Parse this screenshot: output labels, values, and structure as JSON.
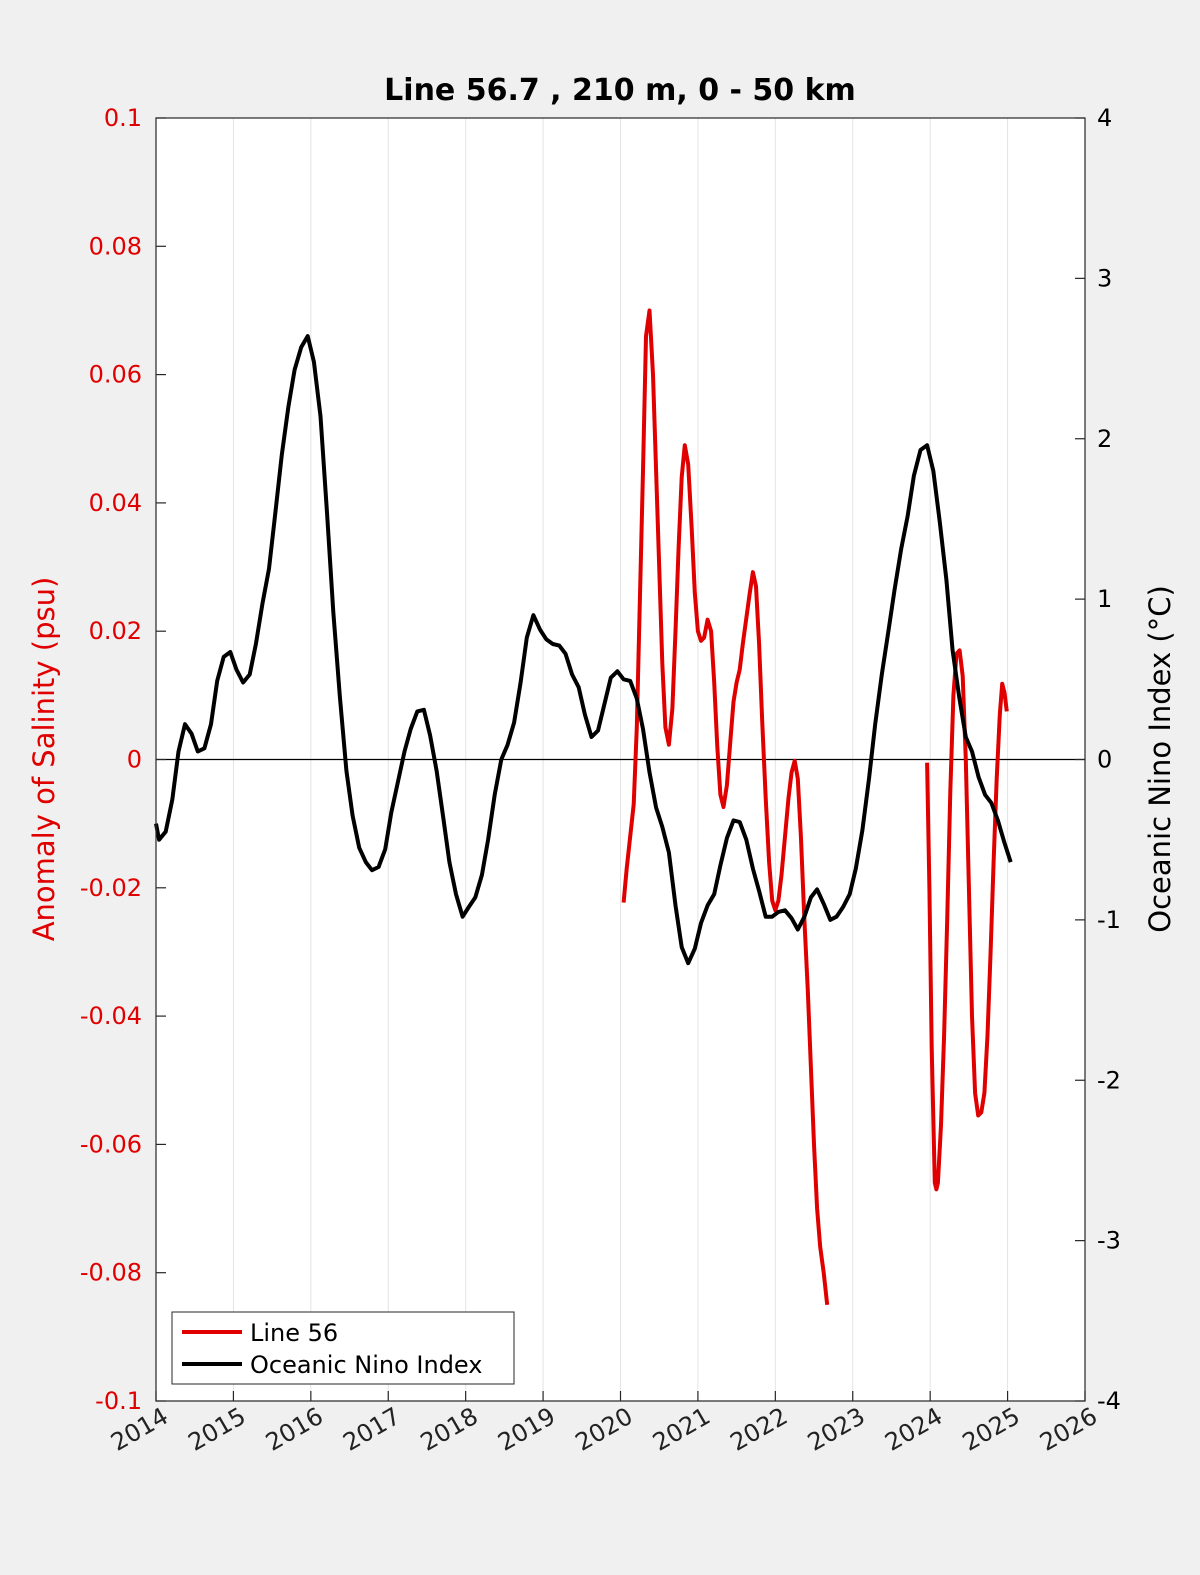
{
  "chart_data": {
    "type": "line",
    "title": "Line 56.7 , 210 m, 0 - 50 km",
    "xlim": [
      2014,
      2026
    ],
    "x_ticks": [
      "2014",
      "2015",
      "2016",
      "2017",
      "2018",
      "2019",
      "2020",
      "2021",
      "2022",
      "2023",
      "2024",
      "2025",
      "2026"
    ],
    "grid": "vertical",
    "legend_position": "bottom-left",
    "y_left": {
      "label": "Anomaly of Salinity (psu)",
      "lim": [
        -0.1,
        0.1
      ],
      "ticks": [
        "0.1",
        "0.08",
        "0.06",
        "0.04",
        "0.02",
        "0",
        "-0.02",
        "-0.04",
        "-0.06",
        "-0.08",
        "-0.1"
      ],
      "color": "#e00000"
    },
    "y_right": {
      "label": "Oceanic Nino Index (°C)",
      "lim": [
        -4,
        4
      ],
      "ticks": [
        "4",
        "3",
        "2",
        "1",
        "0",
        "-1",
        "-2",
        "-3",
        "-4"
      ],
      "color": "#000000"
    },
    "series": [
      {
        "name": "Line 56",
        "axis": "left",
        "color": "#e00000",
        "segments": [
          [
            [
              2020.04,
              -0.0223
            ],
            [
              2020.08,
              -0.017
            ],
            [
              2020.17,
              -0.007
            ],
            [
              2020.21,
              0.005
            ],
            [
              2020.25,
              0.025
            ],
            [
              2020.29,
              0.045
            ],
            [
              2020.33,
              0.066
            ],
            [
              2020.375,
              0.07
            ],
            [
              2020.42,
              0.06
            ],
            [
              2020.46,
              0.045
            ],
            [
              2020.5,
              0.03
            ],
            [
              2020.54,
              0.015
            ],
            [
              2020.58,
              0.005
            ],
            [
              2020.625,
              0.0023
            ],
            [
              2020.67,
              0.008
            ],
            [
              2020.71,
              0.02
            ],
            [
              2020.75,
              0.033
            ],
            [
              2020.79,
              0.044
            ],
            [
              2020.83,
              0.049
            ],
            [
              2020.875,
              0.046
            ],
            [
              2020.92,
              0.036
            ],
            [
              2020.96,
              0.026
            ],
            [
              2021.0,
              0.02
            ],
            [
              2021.04,
              0.0185
            ],
            [
              2021.08,
              0.019
            ],
            [
              2021.125,
              0.0218
            ],
            [
              2021.17,
              0.02
            ],
            [
              2021.21,
              0.012
            ],
            [
              2021.25,
              0.002
            ],
            [
              2021.29,
              -0.0055
            ],
            [
              2021.33,
              -0.0074
            ],
            [
              2021.375,
              -0.004
            ],
            [
              2021.42,
              0.003
            ],
            [
              2021.46,
              0.009
            ],
            [
              2021.5,
              0.012
            ],
            [
              2021.54,
              0.014
            ],
            [
              2021.58,
              0.018
            ],
            [
              2021.625,
              0.022
            ],
            [
              2021.67,
              0.026
            ],
            [
              2021.71,
              0.0292
            ],
            [
              2021.75,
              0.027
            ],
            [
              2021.79,
              0.018
            ],
            [
              2021.83,
              0.006
            ],
            [
              2021.875,
              -0.006
            ],
            [
              2021.92,
              -0.016
            ],
            [
              2021.96,
              -0.022
            ],
            [
              2022.0,
              -0.0235
            ],
            [
              2022.04,
              -0.022
            ],
            [
              2022.08,
              -0.018
            ],
            [
              2022.125,
              -0.012
            ],
            [
              2022.17,
              -0.006
            ],
            [
              2022.21,
              -0.002
            ],
            [
              2022.25,
              -0.0002
            ],
            [
              2022.29,
              -0.003
            ],
            [
              2022.33,
              -0.012
            ],
            [
              2022.375,
              -0.025
            ],
            [
              2022.42,
              -0.036
            ],
            [
              2022.46,
              -0.048
            ],
            [
              2022.5,
              -0.06
            ],
            [
              2022.54,
              -0.07
            ],
            [
              2022.58,
              -0.076
            ],
            [
              2022.625,
              -0.08
            ],
            [
              2022.67,
              -0.085
            ]
          ],
          [
            [
              2023.96,
              -0.0005
            ],
            [
              2023.99,
              -0.02
            ],
            [
              2024.02,
              -0.045
            ],
            [
              2024.06,
              -0.066
            ],
            [
              2024.08,
              -0.067
            ],
            [
              2024.1,
              -0.066
            ],
            [
              2024.14,
              -0.057
            ],
            [
              2024.18,
              -0.043
            ],
            [
              2024.22,
              -0.025
            ],
            [
              2024.26,
              -0.005
            ],
            [
              2024.3,
              0.01
            ],
            [
              2024.34,
              0.0165
            ],
            [
              2024.38,
              0.017
            ],
            [
              2024.42,
              0.013
            ],
            [
              2024.46,
              0.0
            ],
            [
              2024.5,
              -0.02
            ],
            [
              2024.54,
              -0.04
            ],
            [
              2024.58,
              -0.052
            ],
            [
              2024.62,
              -0.0555
            ],
            [
              2024.66,
              -0.055
            ],
            [
              2024.7,
              -0.052
            ],
            [
              2024.74,
              -0.043
            ],
            [
              2024.78,
              -0.03
            ],
            [
              2024.82,
              -0.016
            ],
            [
              2024.86,
              -0.003
            ],
            [
              2024.9,
              0.007
            ],
            [
              2024.93,
              0.0118
            ],
            [
              2024.96,
              0.0104
            ],
            [
              2024.99,
              0.0075
            ]
          ]
        ]
      },
      {
        "name": "Oceanic Nino Index",
        "axis": "right",
        "color": "#000000",
        "segments": [
          [
            [
              2014.0,
              -0.4
            ],
            [
              2014.04,
              -0.5
            ],
            [
              2014.125,
              -0.45
            ],
            [
              2014.21,
              -0.25
            ],
            [
              2014.29,
              0.05
            ],
            [
              2014.375,
              0.22
            ],
            [
              2014.46,
              0.16
            ],
            [
              2014.54,
              0.05
            ],
            [
              2014.625,
              0.07
            ],
            [
              2014.71,
              0.22
            ],
            [
              2014.79,
              0.49
            ],
            [
              2014.875,
              0.64
            ],
            [
              2014.96,
              0.67
            ],
            [
              2015.04,
              0.56
            ],
            [
              2015.125,
              0.48
            ],
            [
              2015.21,
              0.53
            ],
            [
              2015.29,
              0.72
            ],
            [
              2015.375,
              0.97
            ],
            [
              2015.46,
              1.19
            ],
            [
              2015.54,
              1.53
            ],
            [
              2015.625,
              1.9
            ],
            [
              2015.71,
              2.2
            ],
            [
              2015.79,
              2.43
            ],
            [
              2015.875,
              2.57
            ],
            [
              2015.96,
              2.64
            ],
            [
              2016.04,
              2.48
            ],
            [
              2016.125,
              2.14
            ],
            [
              2016.21,
              1.53
            ],
            [
              2016.29,
              0.92
            ],
            [
              2016.375,
              0.39
            ],
            [
              2016.46,
              -0.07
            ],
            [
              2016.54,
              -0.35
            ],
            [
              2016.625,
              -0.55
            ],
            [
              2016.71,
              -0.64
            ],
            [
              2016.79,
              -0.69
            ],
            [
              2016.875,
              -0.67
            ],
            [
              2016.96,
              -0.56
            ],
            [
              2017.04,
              -0.33
            ],
            [
              2017.125,
              -0.14
            ],
            [
              2017.21,
              0.05
            ],
            [
              2017.29,
              0.19
            ],
            [
              2017.375,
              0.3
            ],
            [
              2017.46,
              0.31
            ],
            [
              2017.54,
              0.15
            ],
            [
              2017.625,
              -0.07
            ],
            [
              2017.71,
              -0.36
            ],
            [
              2017.79,
              -0.64
            ],
            [
              2017.875,
              -0.84
            ],
            [
              2017.96,
              -0.98
            ],
            [
              2018.04,
              -0.92
            ],
            [
              2018.125,
              -0.86
            ],
            [
              2018.21,
              -0.72
            ],
            [
              2018.29,
              -0.5
            ],
            [
              2018.375,
              -0.22
            ],
            [
              2018.46,
              0.0
            ],
            [
              2018.54,
              0.09
            ],
            [
              2018.625,
              0.23
            ],
            [
              2018.71,
              0.48
            ],
            [
              2018.79,
              0.76
            ],
            [
              2018.875,
              0.9
            ],
            [
              2018.96,
              0.81
            ],
            [
              2019.04,
              0.75
            ],
            [
              2019.125,
              0.72
            ],
            [
              2019.21,
              0.71
            ],
            [
              2019.29,
              0.66
            ],
            [
              2019.375,
              0.53
            ],
            [
              2019.46,
              0.45
            ],
            [
              2019.54,
              0.28
            ],
            [
              2019.625,
              0.14
            ],
            [
              2019.71,
              0.18
            ],
            [
              2019.79,
              0.34
            ],
            [
              2019.875,
              0.51
            ],
            [
              2019.96,
              0.55
            ],
            [
              2020.04,
              0.5
            ],
            [
              2020.125,
              0.49
            ],
            [
              2020.21,
              0.38
            ],
            [
              2020.29,
              0.19
            ],
            [
              2020.375,
              -0.08
            ],
            [
              2020.46,
              -0.3
            ],
            [
              2020.54,
              -0.42
            ],
            [
              2020.625,
              -0.58
            ],
            [
              2020.71,
              -0.91
            ],
            [
              2020.79,
              -1.17
            ],
            [
              2020.875,
              -1.27
            ],
            [
              2020.96,
              -1.18
            ],
            [
              2021.04,
              -1.02
            ],
            [
              2021.125,
              -0.91
            ],
            [
              2021.21,
              -0.84
            ],
            [
              2021.29,
              -0.66
            ],
            [
              2021.375,
              -0.49
            ],
            [
              2021.46,
              -0.38
            ],
            [
              2021.54,
              -0.39
            ],
            [
              2021.625,
              -0.5
            ],
            [
              2021.71,
              -0.68
            ],
            [
              2021.79,
              -0.82
            ],
            [
              2021.875,
              -0.98
            ],
            [
              2021.96,
              -0.98
            ],
            [
              2022.04,
              -0.95
            ],
            [
              2022.125,
              -0.94
            ],
            [
              2022.21,
              -0.99
            ],
            [
              2022.29,
              -1.06
            ],
            [
              2022.375,
              -0.98
            ],
            [
              2022.46,
              -0.86
            ],
            [
              2022.54,
              -0.81
            ],
            [
              2022.625,
              -0.9
            ],
            [
              2022.71,
              -1.0
            ],
            [
              2022.79,
              -0.98
            ],
            [
              2022.875,
              -0.92
            ],
            [
              2022.96,
              -0.84
            ],
            [
              2023.04,
              -0.68
            ],
            [
              2023.125,
              -0.44
            ],
            [
              2023.21,
              -0.12
            ],
            [
              2023.29,
              0.22
            ],
            [
              2023.375,
              0.53
            ],
            [
              2023.46,
              0.8
            ],
            [
              2023.54,
              1.06
            ],
            [
              2023.625,
              1.31
            ],
            [
              2023.71,
              1.52
            ],
            [
              2023.79,
              1.77
            ],
            [
              2023.875,
              1.93
            ],
            [
              2023.96,
              1.96
            ],
            [
              2024.04,
              1.8
            ],
            [
              2024.125,
              1.48
            ],
            [
              2024.21,
              1.12
            ],
            [
              2024.29,
              0.68
            ],
            [
              2024.375,
              0.39
            ],
            [
              2024.46,
              0.14
            ],
            [
              2024.54,
              0.05
            ],
            [
              2024.625,
              -0.11
            ],
            [
              2024.71,
              -0.22
            ],
            [
              2024.79,
              -0.27
            ],
            [
              2024.875,
              -0.38
            ],
            [
              2024.96,
              -0.52
            ],
            [
              2025.04,
              -0.64
            ]
          ]
        ]
      }
    ]
  }
}
